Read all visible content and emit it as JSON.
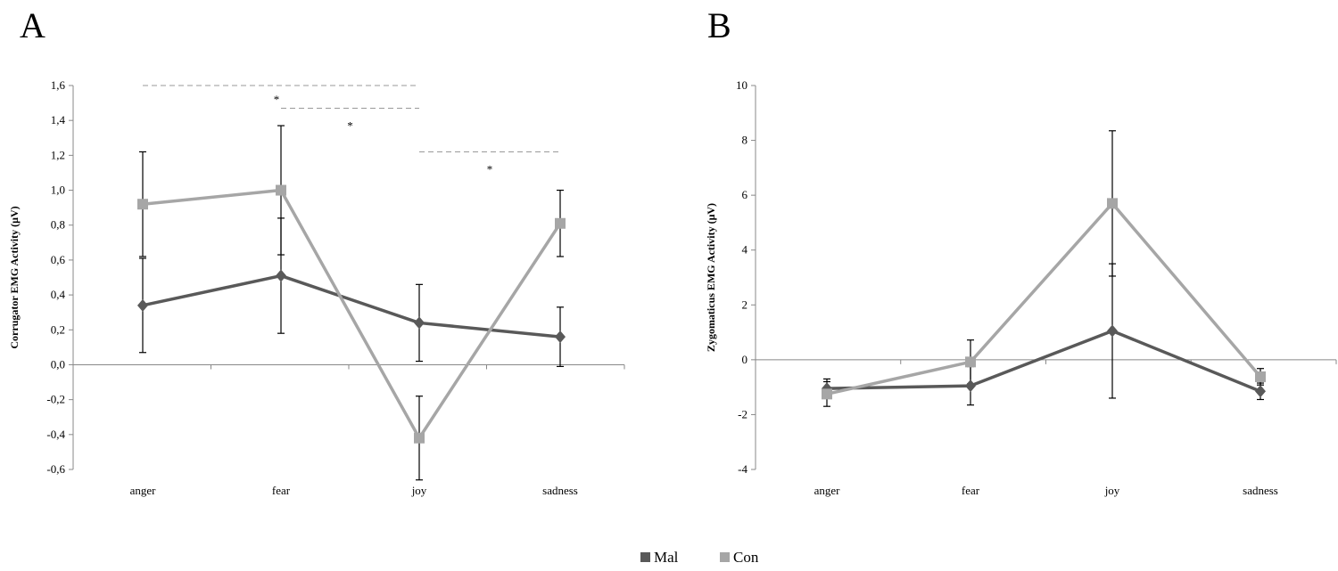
{
  "legend": [
    {
      "name": "Mal",
      "color": "#595959"
    },
    {
      "name": "Con",
      "color": "#a6a6a6"
    }
  ],
  "chart_data": [
    {
      "type": "line",
      "panel_label": "A",
      "ylabel": "Corrugator EMG Activity (μV)",
      "xlabel": "",
      "categories": [
        "anger",
        "fear",
        "joy",
        "sadness"
      ],
      "ylim": [
        -0.6,
        1.6
      ],
      "yticks": [
        -0.6,
        -0.4,
        -0.2,
        0.0,
        0.2,
        0.4,
        0.6,
        0.8,
        1.0,
        1.2,
        1.4,
        1.6
      ],
      "tick_labels": [
        "-0,6",
        "-0,4",
        "-0,2",
        "0,0",
        "0,2",
        "0,4",
        "0,6",
        "0,8",
        "1,0",
        "1,2",
        "1,4",
        "1,6"
      ],
      "series": [
        {
          "name": "Mal",
          "values": [
            0.34,
            0.51,
            0.24,
            0.16
          ],
          "error": [
            0.27,
            0.33,
            0.22,
            0.17
          ]
        },
        {
          "name": "Con",
          "values": [
            0.92,
            1.0,
            -0.42,
            0.81
          ],
          "error": [
            0.3,
            0.37,
            0.24,
            0.19
          ]
        }
      ],
      "significance": [
        {
          "from": 0,
          "to": 2,
          "level": 1.6,
          "label": "*"
        },
        {
          "from": 1,
          "to": 2,
          "level": 1.47,
          "label": "*"
        },
        {
          "from": 2,
          "to": 3,
          "level": 1.22,
          "label": "*"
        }
      ],
      "grid": false
    },
    {
      "type": "line",
      "panel_label": "B",
      "ylabel": "Zygomaticus EMG Activity (μV)",
      "xlabel": "",
      "categories": [
        "anger",
        "fear",
        "joy",
        "sadness"
      ],
      "ylim": [
        -4,
        10
      ],
      "yticks": [
        -4,
        -2,
        0,
        2,
        4,
        6,
        8,
        10
      ],
      "tick_labels": [
        "-4",
        "-2",
        "0",
        "2",
        "4",
        "6",
        "8",
        "10"
      ],
      "series": [
        {
          "name": "Mal",
          "values": [
            -1.05,
            -0.95,
            1.05,
            -1.15
          ],
          "error": [
            0.35,
            0.7,
            2.45,
            0.3
          ]
        },
        {
          "name": "Con",
          "values": [
            -1.25,
            -0.08,
            5.7,
            -0.62
          ],
          "error": [
            0.45,
            0.8,
            2.65,
            0.3
          ]
        }
      ],
      "grid": false
    }
  ]
}
